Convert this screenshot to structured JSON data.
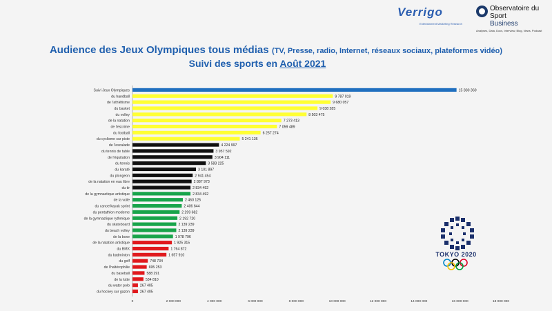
{
  "header": {
    "verrigo_logo": "Verrigo",
    "verrigo_tagline": "Entertainment Marketing Research",
    "observatoire_line1": "Observatoire du",
    "observatoire_line2": "Sport",
    "observatoire_line3": "Business",
    "observatoire_tagline": "Analyses, Data, Docs, Interview, Blog, News, Podcast"
  },
  "title_main": "Audience des Jeux Olympiques tous médias",
  "title_paren": "(TV, Presse, radio, Internet, réseaux sociaux, plateformes vidéo)",
  "subtitle_prefix": "Suivi des sports en",
  "subtitle_date": "Août 2021",
  "tokyo_label": "TOKYO 2020",
  "colors": {
    "blue": "#1f6fbf",
    "yellow": "#ffff33",
    "black": "#111111",
    "green": "#18a44a",
    "red": "#e0191d",
    "title": "#1f5fae"
  },
  "chart_data": {
    "type": "bar",
    "orientation": "horizontal",
    "xlim": [
      0,
      18000000
    ],
    "x_ticks": [
      "0",
      "2 000 000",
      "4 000 000",
      "6 000 000",
      "8 000 000",
      "10 000 000",
      "12 000 000",
      "14 000 000",
      "16 000 000",
      "18 000 000"
    ],
    "categories": [
      "Suivi Jeux Olympiques",
      "du handball",
      "de l'athlétisme",
      "du basket",
      "du volley",
      "de la natation",
      "de l'escrime",
      "du football",
      "du cyclisme sur piste",
      "de l'escalade",
      "du tennis de table",
      "de l'équitation",
      "du tennis",
      "du karaté",
      "du plongeon",
      "de la natation en eau libre",
      "du tir",
      "de la gymnastique artistique",
      "de la voile",
      "du canoe/kayak sprint",
      "du pentathlon moderne",
      "de la gymnastique rythmique",
      "du skateboard",
      "du beach volley",
      "de la boxe",
      "de la natation artistique",
      "du BMX",
      "du badminton",
      "du golf",
      "de l'haltérophilie",
      "du baseball",
      "de la lutte",
      "du water polo",
      "du hockey sur gazon"
    ],
    "values": [
      15830369,
      9787019,
      9680057,
      9038285,
      8503475,
      7273413,
      7059489,
      6257274,
      5241136,
      4224997,
      3957592,
      3904111,
      3583225,
      3101897,
      2941454,
      2887973,
      2834492,
      2834492,
      2460125,
      2406644,
      2299682,
      2192720,
      2139239,
      2139239,
      1978796,
      1925315,
      1764872,
      1657910,
      748734,
      695253,
      588291,
      534810,
      267405,
      267405
    ],
    "value_labels": [
      "15 830 369",
      "9 787 019",
      "9 680 057",
      "9 038 285",
      "8 503 475",
      "7 273 413",
      "7 059 489",
      "6 257 274",
      "5 241 136",
      "4 224 997",
      "3 957 592",
      "3 904 111",
      "3 583 225",
      "3 101 897",
      "2 941 454",
      "2 887 973",
      "2 834 492",
      "2 834 492",
      "2 460 125",
      "2 406 644",
      "2 299 682",
      "2 192 720",
      "2 139 239",
      "2 139 239",
      "1 978 796",
      "1 925 315",
      "1 764 872",
      "1 657 910",
      "748 734",
      "695 253",
      "588 291",
      "534 810",
      "267 405",
      "267 405"
    ],
    "bar_colors": [
      "blue",
      "yellow",
      "yellow",
      "yellow",
      "yellow",
      "yellow",
      "yellow",
      "yellow",
      "yellow",
      "black",
      "black",
      "black",
      "black",
      "black",
      "black",
      "black",
      "black",
      "green",
      "green",
      "green",
      "green",
      "green",
      "green",
      "green",
      "green",
      "red",
      "red",
      "red",
      "red",
      "red",
      "red",
      "red",
      "red",
      "red"
    ],
    "grid": false,
    "legend": "none"
  }
}
